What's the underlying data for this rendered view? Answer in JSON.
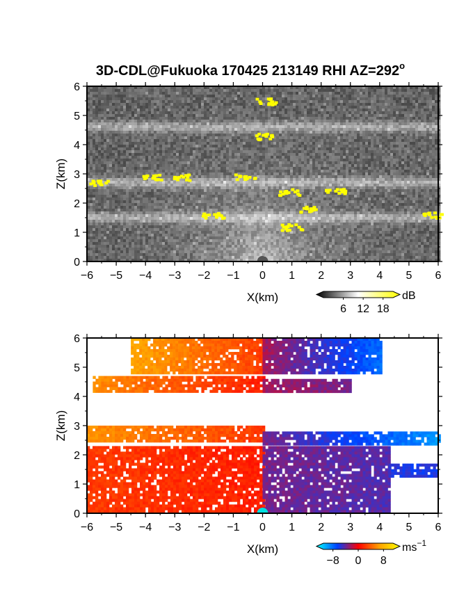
{
  "title": "3D-CDL@Fukuoka 170425 213149 RHI AZ=292",
  "title_superscript": "o",
  "chart_data": [
    {
      "type": "heatmap",
      "quantity": "backscatter",
      "xlabel": "X(km)",
      "ylabel": "Z(km)",
      "xlim": [
        -6,
        6
      ],
      "ylim": [
        0,
        6
      ],
      "xticks": [
        "-6",
        "-5",
        "-4",
        "-3",
        "-2",
        "-1",
        "0",
        "1",
        "2",
        "3",
        "4",
        "5",
        "6"
      ],
      "yticks": [
        "0",
        "1",
        "2",
        "3",
        "4",
        "5",
        "6"
      ],
      "colorbar": {
        "unit": "dB",
        "ticks": [
          "6",
          "12",
          "18"
        ],
        "range": [
          0,
          21
        ],
        "colors": [
          "#000000",
          "#ffffff",
          "#ffff00"
        ]
      },
      "layers": [
        {
          "z_km": 4.6,
          "x_from": -6,
          "x_to": 6
        },
        {
          "z_km": 2.7,
          "x_from": -6,
          "x_to": 6
        },
        {
          "z_km": 1.5,
          "x_from": -6,
          "x_to": 6
        }
      ],
      "high_echo_patches": [
        {
          "x": -5.6,
          "z": 2.7
        },
        {
          "x": -3.8,
          "z": 2.9
        },
        {
          "x": -1.7,
          "z": 1.6
        },
        {
          "x": -0.6,
          "z": 2.9
        },
        {
          "x": 0.1,
          "z": 5.5
        },
        {
          "x": 0.1,
          "z": 4.3
        },
        {
          "x": 0.9,
          "z": 2.4
        },
        {
          "x": 1.5,
          "z": 1.8
        },
        {
          "x": 2.5,
          "z": 2.4
        },
        {
          "x": 1.0,
          "z": 1.2
        },
        {
          "x": -2.7,
          "z": 2.9
        },
        {
          "x": 5.8,
          "z": 1.6
        }
      ]
    },
    {
      "type": "heatmap",
      "quantity": "doppler_velocity",
      "xlabel": "X(km)",
      "ylabel": "Z(km)",
      "xlim": [
        -6,
        6
      ],
      "ylim": [
        0,
        6
      ],
      "xticks": [
        "-6",
        "-5",
        "-4",
        "-3",
        "-2",
        "-1",
        "0",
        "1",
        "2",
        "3",
        "4",
        "5",
        "6"
      ],
      "yticks": [
        "0",
        "1",
        "2",
        "3",
        "4",
        "5",
        "6"
      ],
      "colorbar": {
        "unit": "ms",
        "unit_superscript": "−1",
        "ticks": [
          "−8",
          "0",
          "8"
        ],
        "range": [
          -11,
          11
        ],
        "colors": [
          "#00ffff",
          "#0040ff",
          "#ff0000",
          "#ffa000",
          "#ffff00"
        ]
      },
      "regions": [
        {
          "x_from": -4.5,
          "x_to": 0,
          "z_from": 4.8,
          "z_to": 6.0,
          "v_outer": 7,
          "v_inner": 2
        },
        {
          "x_from": 0,
          "x_to": 4.0,
          "z_from": 4.8,
          "z_to": 6.0,
          "v_inner": -2,
          "v_outer": -9
        },
        {
          "x_from": -5.8,
          "x_to": 0,
          "z_from": 4.2,
          "z_to": 4.7,
          "v_outer": 5,
          "v_inner": 1
        },
        {
          "x_from": 0,
          "x_to": 3.0,
          "z_from": 4.2,
          "z_to": 4.6,
          "v_inner": -2,
          "v_outer": -4
        },
        {
          "x_from": -6,
          "x_to": 0,
          "z_from": 2.5,
          "z_to": 3.0,
          "v_outer": 5,
          "v_inner": 2
        },
        {
          "x_from": 0,
          "x_to": 6,
          "z_from": 2.4,
          "z_to": 2.8,
          "v_inner": -3,
          "v_outer": -8
        },
        {
          "x_from": -6,
          "x_to": 0,
          "z_from": 0.05,
          "z_to": 2.3,
          "v_outer": 2,
          "v_inner": 1
        },
        {
          "x_from": 0,
          "x_to": 4.3,
          "z_from": 0.05,
          "z_to": 2.3,
          "v_inner": -3,
          "v_outer": -4
        },
        {
          "x_from": 4.3,
          "x_to": 6,
          "z_from": 1.3,
          "z_to": 1.7,
          "v_inner": -4,
          "v_outer": -5
        }
      ]
    }
  ]
}
